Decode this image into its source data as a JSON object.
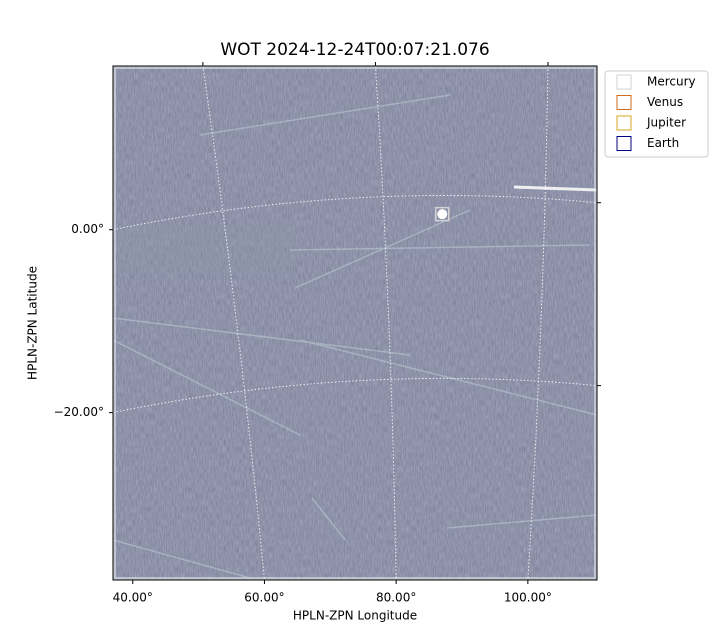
{
  "chart_data": {
    "type": "image",
    "title": "WOT 2024-12-24T00:07:21.076",
    "xlabel": "HPLN-ZPN Longitude",
    "ylabel": "HPLN-ZPN Latitude",
    "xlim": [
      37,
      110.5
    ],
    "ylim": [
      -38.3,
      17.9
    ],
    "xticks": [
      {
        "value": 40,
        "label": "40.00°"
      },
      {
        "value": 60,
        "label": "60.00°"
      },
      {
        "value": 80,
        "label": "80.00°"
      },
      {
        "value": 100,
        "label": "100.00°"
      }
    ],
    "yticks": [
      {
        "value": 0,
        "label": "0.00°"
      },
      {
        "value": -20,
        "label": "−20.00°"
      }
    ],
    "grid": true,
    "legend": "upper right",
    "series": [
      {
        "name": "Mercury",
        "color": "#d3d3d3",
        "x": 87.0,
        "y": 1.7
      },
      {
        "name": "Venus",
        "color": "#d2691e",
        "x": null,
        "y": null
      },
      {
        "name": "Jupiter",
        "color": "#daa520",
        "x": null,
        "y": null
      },
      {
        "name": "Earth",
        "color": "#000080",
        "x": null,
        "y": null
      }
    ]
  }
}
